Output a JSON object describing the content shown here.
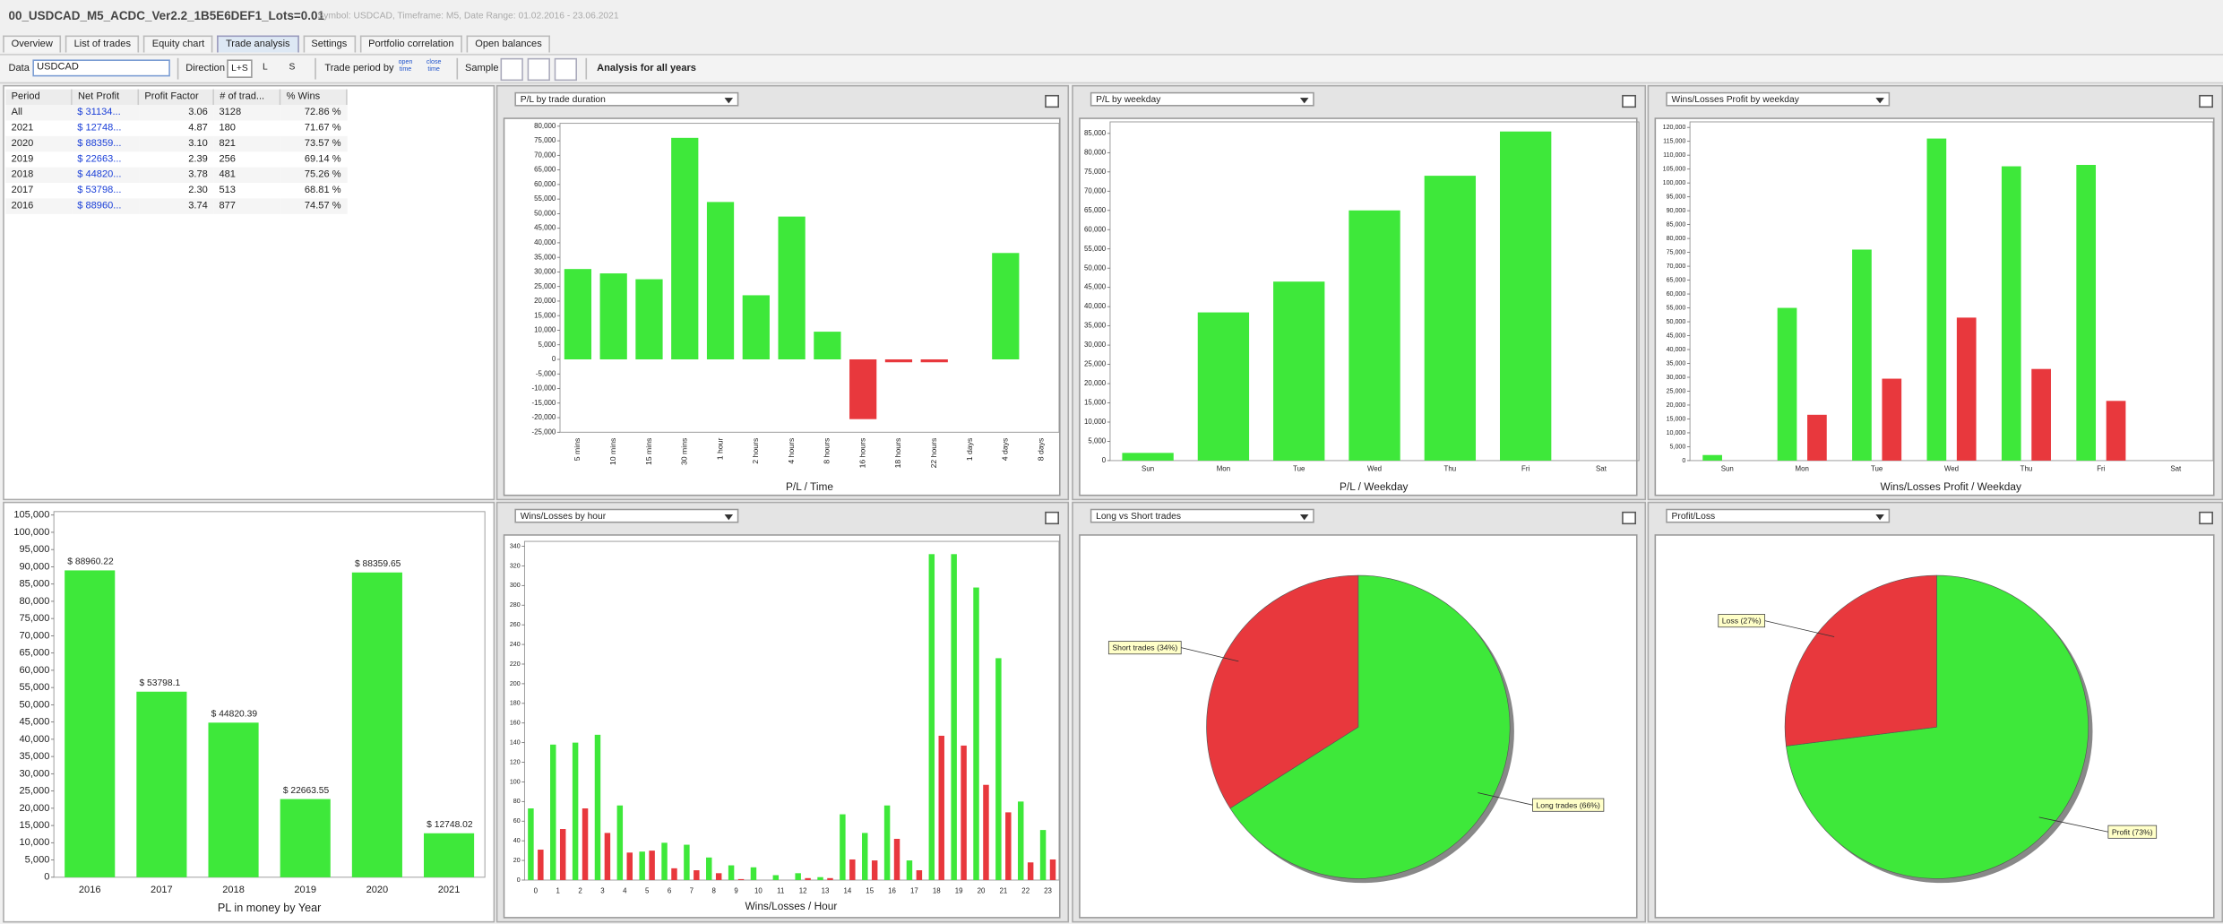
{
  "header": {
    "title": "00_USDCAD_M5_ACDC_Ver2.2_1B5E6DEF1_Lots=0.01",
    "subtitle": "Symbol: USDCAD, Timeframe: M5, Date Range: 01.02.2016 - 23.06.2021"
  },
  "tabs": {
    "items": [
      "Overview",
      "List of trades",
      "Equity chart",
      "Trade analysis",
      "Settings",
      "Portfolio correlation",
      "Open balances"
    ],
    "active": 3
  },
  "toolbar": {
    "data_label": "Data",
    "symbol": "USDCAD",
    "direction_label": "Direction",
    "directions": [
      "L+S",
      "L",
      "S"
    ],
    "period_label": "Trade period by",
    "period_options": [
      "open time",
      "close time"
    ],
    "sample_label": "Sample",
    "analysis": "Analysis for all years"
  },
  "table": {
    "columns": [
      "Period",
      "Net Profit",
      "Profit Factor",
      "# of trad...",
      "% Wins"
    ],
    "rows": [
      [
        "All",
        "$ 31134...",
        "3.06",
        "3128",
        "72.86 %"
      ],
      [
        "2021",
        "$ 12748...",
        "4.87",
        "180",
        "71.67 %"
      ],
      [
        "2020",
        "$ 88359...",
        "3.10",
        "821",
        "73.57 %"
      ],
      [
        "2019",
        "$ 22663...",
        "2.39",
        "256",
        "69.14 %"
      ],
      [
        "2018",
        "$ 44820...",
        "3.78",
        "481",
        "75.26 %"
      ],
      [
        "2017",
        "$ 53798...",
        "2.30",
        "513",
        "68.81 %"
      ],
      [
        "2016",
        "$ 88960...",
        "3.74",
        "877",
        "74.57 %"
      ]
    ]
  },
  "chart_data": [
    {
      "type": "bar",
      "title": "P/L by trade duration",
      "xlabel": "P/L / Time",
      "categories": [
        "5 mins",
        "10 mins",
        "15 mins",
        "30 mins",
        "1 hour",
        "2 hours",
        "4 hours",
        "8 hours",
        "16 hours",
        "18 hours",
        "22 hours",
        "1 days",
        "4 days",
        "8 days"
      ],
      "series": [
        {
          "color": "#3ee83a",
          "negative_color": "#e8383d",
          "values": [
            31000,
            29500,
            27500,
            76000,
            54000,
            22000,
            49000,
            9500,
            -20500,
            -1000,
            -1000,
            null,
            36500,
            null
          ]
        }
      ],
      "ylim": [
        -25000,
        81000
      ],
      "yticks": [
        {
          "value": -25000,
          "label": "-25,000"
        },
        {
          "value": -20000,
          "label": "-20,000"
        },
        {
          "value": -15000,
          "label": "-15,000"
        },
        {
          "value": -10000,
          "label": "-10,000"
        },
        {
          "value": -5000,
          "label": "-5,000"
        },
        0,
        {
          "value": 5000,
          "label": "5,000"
        },
        {
          "value": 10000,
          "label": "10,000"
        },
        {
          "value": 15000,
          "label": "15,000"
        },
        {
          "value": 20000,
          "label": "20,000"
        },
        {
          "value": 25000,
          "label": "25,000"
        },
        {
          "value": 30000,
          "label": "30,000"
        },
        {
          "value": 35000,
          "label": "35,000"
        },
        {
          "value": 40000,
          "label": "40,000"
        },
        {
          "value": 45000,
          "label": "45,000"
        },
        {
          "value": 50000,
          "label": "50,000"
        },
        {
          "value": 55000,
          "label": "55,000"
        },
        {
          "value": 60000,
          "label": "60,000"
        },
        {
          "value": 65000,
          "label": "65,000"
        },
        {
          "value": 70000,
          "label": "70,000"
        },
        {
          "value": 75000,
          "label": "75,000"
        },
        {
          "value": 80000,
          "label": "80,000"
        }
      ]
    },
    {
      "type": "bar",
      "title": "P/L by weekday",
      "xlabel": "P/L / Weekday",
      "categories": [
        "Sun",
        "Mon",
        "Tue",
        "Wed",
        "Thu",
        "Fri",
        "Sat"
      ],
      "series": [
        {
          "color": "#3ee83a",
          "values": [
            2000,
            38500,
            46500,
            65000,
            74000,
            85500,
            null
          ]
        }
      ],
      "ylim": [
        0,
        88000
      ],
      "yticks": [
        0,
        {
          "value": 5000,
          "label": "5,000"
        },
        {
          "value": 10000,
          "label": "10,000"
        },
        {
          "value": 15000,
          "label": "15,000"
        },
        {
          "value": 20000,
          "label": "20,000"
        },
        {
          "value": 25000,
          "label": "25,000"
        },
        {
          "value": 30000,
          "label": "30,000"
        },
        {
          "value": 35000,
          "label": "35,000"
        },
        {
          "value": 40000,
          "label": "40,000"
        },
        {
          "value": 45000,
          "label": "45,000"
        },
        {
          "value": 50000,
          "label": "50,000"
        },
        {
          "value": 55000,
          "label": "55,000"
        },
        {
          "value": 60000,
          "label": "60,000"
        },
        {
          "value": 65000,
          "label": "65,000"
        },
        {
          "value": 70000,
          "label": "70,000"
        },
        {
          "value": 75000,
          "label": "75,000"
        },
        {
          "value": 80000,
          "label": "80,000"
        },
        {
          "value": 85000,
          "label": "85,000"
        }
      ]
    },
    {
      "type": "bar",
      "title": "Wins/Losses Profit by weekday",
      "xlabel": "Wins/Losses Profit / Weekday",
      "categories": [
        "Sun",
        "Mon",
        "Tue",
        "Wed",
        "Thu",
        "Fri",
        "Sat"
      ],
      "series": [
        {
          "color": "#3ee83a",
          "values": [
            2000,
            55000,
            76000,
            116000,
            106000,
            106500,
            null
          ]
        },
        {
          "color": "#e8383d",
          "values": [
            null,
            16500,
            29500,
            51500,
            33000,
            21500,
            null
          ]
        }
      ],
      "ylim": [
        0,
        122000
      ],
      "yticks": [
        0,
        {
          "value": 5000,
          "label": "5,000"
        },
        {
          "value": 10000,
          "label": "10,000"
        },
        {
          "value": 15000,
          "label": "15,000"
        },
        {
          "value": 20000,
          "label": "20,000"
        },
        {
          "value": 25000,
          "label": "25,000"
        },
        {
          "value": 30000,
          "label": "30,000"
        },
        {
          "value": 35000,
          "label": "35,000"
        },
        {
          "value": 40000,
          "label": "40,000"
        },
        {
          "value": 45000,
          "label": "45,000"
        },
        {
          "value": 50000,
          "label": "50,000"
        },
        {
          "value": 55000,
          "label": "55,000"
        },
        {
          "value": 60000,
          "label": "60,000"
        },
        {
          "value": 65000,
          "label": "65,000"
        },
        {
          "value": 70000,
          "label": "70,000"
        },
        {
          "value": 75000,
          "label": "75,000"
        },
        {
          "value": 80000,
          "label": "80,000"
        },
        {
          "value": 85000,
          "label": "85,000"
        },
        {
          "value": 90000,
          "label": "90,000"
        },
        {
          "value": 95000,
          "label": "95,000"
        },
        {
          "value": 100000,
          "label": "100,000"
        },
        {
          "value": 105000,
          "label": "105,000"
        },
        {
          "value": 110000,
          "label": "110,000"
        },
        {
          "value": 115000,
          "label": "115,000"
        },
        {
          "value": 120000,
          "label": "120,000"
        }
      ]
    },
    {
      "type": "bar",
      "xlabel": "PL in money by Year",
      "categories": [
        "2016",
        "2017",
        "2018",
        "2019",
        "2020",
        "2021"
      ],
      "series": [
        {
          "color": "#3ee83a",
          "values": [
            88960.22,
            53798.1,
            44820.39,
            22663.55,
            88359.65,
            12748.02
          ],
          "value_labels": [
            "$ 88960.22",
            "$ 53798.1",
            "$ 44820.39",
            "$ 22663.55",
            "$ 88359.65",
            "$ 12748.02"
          ]
        }
      ],
      "ylim": [
        0,
        106000
      ],
      "yticks": [
        0,
        {
          "value": 5000,
          "label": "5,000"
        },
        {
          "value": 10000,
          "label": "10,000"
        },
        {
          "value": 15000,
          "label": "15,000"
        },
        {
          "value": 20000,
          "label": "20,000"
        },
        {
          "value": 25000,
          "label": "25,000"
        },
        {
          "value": 30000,
          "label": "30,000"
        },
        {
          "value": 35000,
          "label": "35,000"
        },
        {
          "value": 40000,
          "label": "40,000"
        },
        {
          "value": 45000,
          "label": "45,000"
        },
        {
          "value": 50000,
          "label": "50,000"
        },
        {
          "value": 55000,
          "label": "55,000"
        },
        {
          "value": 60000,
          "label": "60,000"
        },
        {
          "value": 65000,
          "label": "65,000"
        },
        {
          "value": 70000,
          "label": "70,000"
        },
        {
          "value": 75000,
          "label": "75,000"
        },
        {
          "value": 80000,
          "label": "80,000"
        },
        {
          "value": 85000,
          "label": "85,000"
        },
        {
          "value": 90000,
          "label": "90,000"
        },
        {
          "value": 95000,
          "label": "95,000"
        },
        {
          "value": 100000,
          "label": "100,000"
        },
        {
          "value": 105000,
          "label": "105,000"
        }
      ]
    },
    {
      "type": "bar",
      "title": "Wins/Losses by hour",
      "xlabel": "Wins/Losses / Hour",
      "categories": [
        "0",
        "1",
        "2",
        "3",
        "4",
        "5",
        "6",
        "7",
        "8",
        "9",
        "10",
        "11",
        "12",
        "13",
        "14",
        "15",
        "16",
        "17",
        "18",
        "19",
        "20",
        "21",
        "22",
        "23"
      ],
      "series": [
        {
          "color": "#3ee83a",
          "values": [
            73,
            138,
            140,
            148,
            76,
            29,
            38,
            36,
            23,
            15,
            13,
            5,
            7,
            3,
            67,
            48,
            76,
            20,
            332,
            332,
            298,
            226,
            80,
            51
          ]
        },
        {
          "color": "#e8383d",
          "values": [
            31,
            52,
            73,
            48,
            28,
            30,
            12,
            10,
            7,
            1,
            null,
            null,
            2,
            2,
            21,
            20,
            42,
            10,
            147,
            137,
            97,
            69,
            18,
            21
          ]
        }
      ],
      "ylim": [
        0,
        345
      ],
      "yticks": [
        0,
        20,
        40,
        60,
        80,
        100,
        120,
        140,
        160,
        180,
        200,
        220,
        240,
        260,
        280,
        300,
        320,
        340
      ]
    },
    {
      "type": "pie",
      "title": "Long vs Short trades",
      "values": [
        66,
        34
      ],
      "value_labels": [
        "Long trades (66%)",
        "Short trades (34%)"
      ],
      "colors": [
        "#3ee83a",
        "#e8383d"
      ]
    },
    {
      "type": "pie",
      "title": "Profit/Loss",
      "values": [
        73,
        27
      ],
      "value_labels": [
        "Profit (73%)",
        "Loss (27%)"
      ],
      "colors": [
        "#3ee83a",
        "#e8383d"
      ]
    }
  ]
}
